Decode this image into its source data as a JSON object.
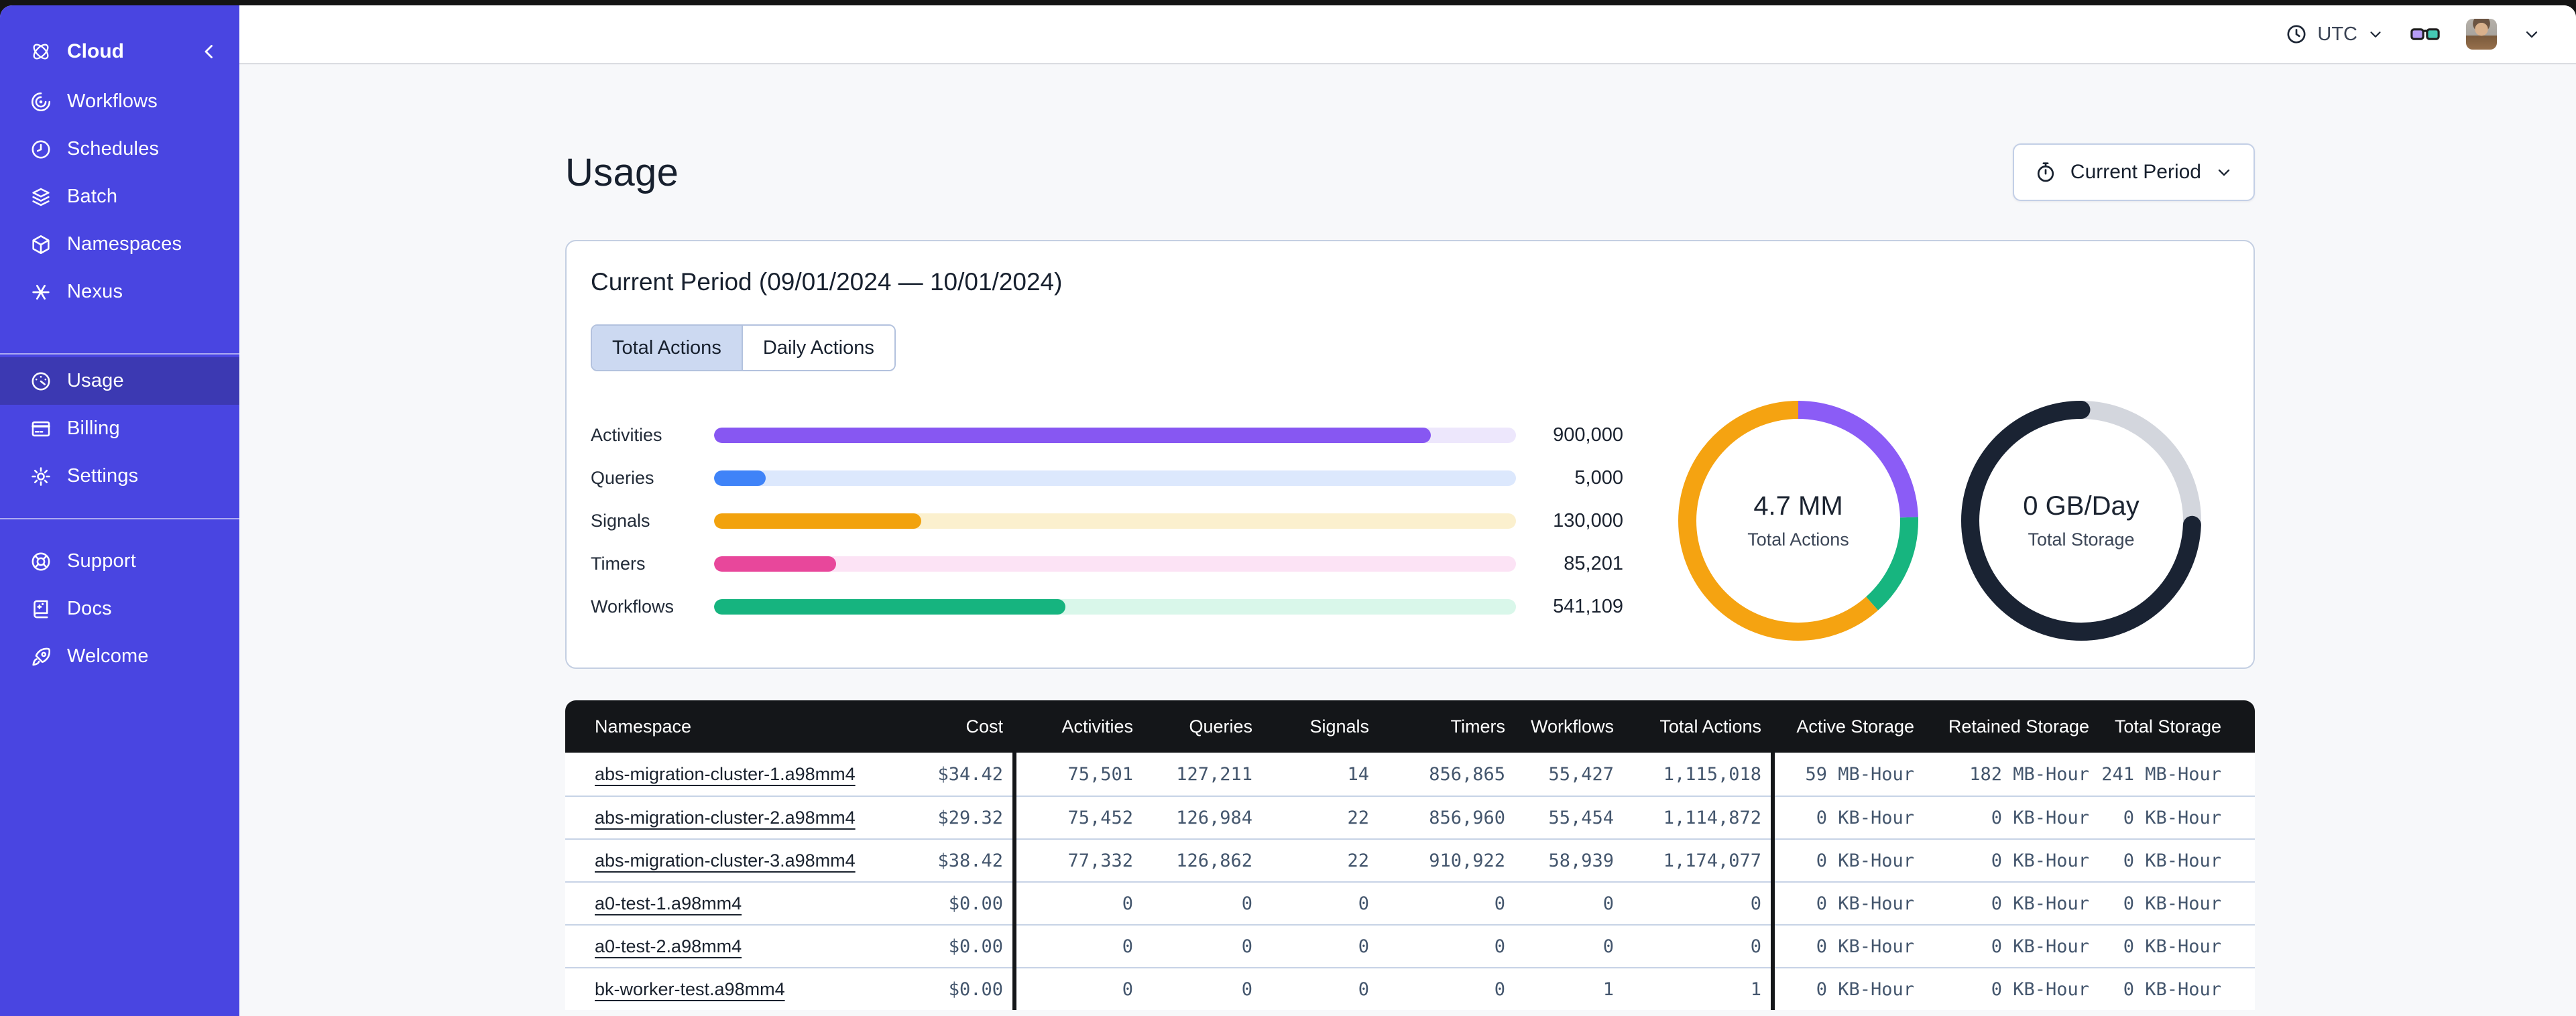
{
  "chrome": {
    "timezone": "UTC"
  },
  "sidebar": {
    "brand": "Cloud",
    "primary": [
      {
        "label": "Workflows"
      },
      {
        "label": "Schedules"
      },
      {
        "label": "Batch"
      },
      {
        "label": "Namespaces"
      },
      {
        "label": "Nexus"
      }
    ],
    "account": [
      {
        "label": "Usage",
        "active": true
      },
      {
        "label": "Billing",
        "active": false
      },
      {
        "label": "Settings",
        "active": false
      }
    ],
    "footer": [
      {
        "label": "Support"
      },
      {
        "label": "Docs"
      },
      {
        "label": "Welcome"
      }
    ]
  },
  "page": {
    "title": "Usage",
    "period_selector": "Current Period"
  },
  "usage_card": {
    "heading": "Current Period (09/01/2024 — 10/01/2024)",
    "tabs": [
      {
        "label": "Total Actions",
        "active": true
      },
      {
        "label": "Daily Actions",
        "active": false
      }
    ],
    "chart_data": {
      "type": "bar",
      "orientation": "horizontal",
      "categories": [
        "Activities",
        "Queries",
        "Signals",
        "Timers",
        "Workflows"
      ],
      "values": [
        900000,
        5000,
        130000,
        85201,
        541109
      ],
      "value_labels": [
        "900,000",
        "5,000",
        "130,000",
        "85,201",
        "541,109"
      ],
      "fill_fractions": [
        0.894,
        0.064,
        0.258,
        0.152,
        0.438
      ],
      "bar_colors": [
        "#8757F2",
        "#3F83F8",
        "#F2A20D",
        "#E8479B",
        "#16B47F"
      ],
      "track_colors": [
        "#EDE7FC",
        "#DCE8FD",
        "#FBF0CE",
        "#FCE3F5",
        "#D9F7EA"
      ]
    },
    "donuts": [
      {
        "value": "4.7 MM",
        "label": "Total Actions",
        "segments": [
          {
            "name": "purple",
            "color": "#8B5CF6",
            "fraction": 0.245
          },
          {
            "name": "green",
            "color": "#17B57F",
            "fraction": 0.139
          },
          {
            "name": "orange",
            "color": "#F5A311",
            "fraction": 0.616
          }
        ]
      },
      {
        "value": "0 GB/Day",
        "label": "Total Storage",
        "track_color": "#D3D6DD",
        "segments": [
          {
            "name": "dark",
            "color": "#1A2333",
            "fraction": 0.744,
            "start": 0.256,
            "rounded": true
          }
        ]
      }
    ]
  },
  "table": {
    "columns": [
      "Namespace",
      "Cost",
      "Activities",
      "Queries",
      "Signals",
      "Timers",
      "Workflows",
      "Total Actions",
      "Active Storage",
      "Retained Storage",
      "Total Storage"
    ],
    "rows": [
      [
        "abs-migration-cluster-1.a98mm4",
        "$34.42",
        "75,501",
        "127,211",
        "14",
        "856,865",
        "55,427",
        "1,115,018",
        "59 MB-Hour",
        "182 MB-Hour",
        "241 MB-Hour"
      ],
      [
        "abs-migration-cluster-2.a98mm4",
        "$29.32",
        "75,452",
        "126,984",
        "22",
        "856,960",
        "55,454",
        "1,114,872",
        "0 KB-Hour",
        "0 KB-Hour",
        "0 KB-Hour"
      ],
      [
        "abs-migration-cluster-3.a98mm4",
        "$38.42",
        "77,332",
        "126,862",
        "22",
        "910,922",
        "58,939",
        "1,174,077",
        "0 KB-Hour",
        "0 KB-Hour",
        "0 KB-Hour"
      ],
      [
        "a0-test-1.a98mm4",
        "$0.00",
        "0",
        "0",
        "0",
        "0",
        "0",
        "0",
        "0 KB-Hour",
        "0 KB-Hour",
        "0 KB-Hour"
      ],
      [
        "a0-test-2.a98mm4",
        "$0.00",
        "0",
        "0",
        "0",
        "0",
        "0",
        "0",
        "0 KB-Hour",
        "0 KB-Hour",
        "0 KB-Hour"
      ],
      [
        "bk-worker-test.a98mm4",
        "$0.00",
        "0",
        "0",
        "0",
        "0",
        "1",
        "1",
        "0 KB-Hour",
        "0 KB-Hour",
        "0 KB-Hour"
      ]
    ]
  }
}
